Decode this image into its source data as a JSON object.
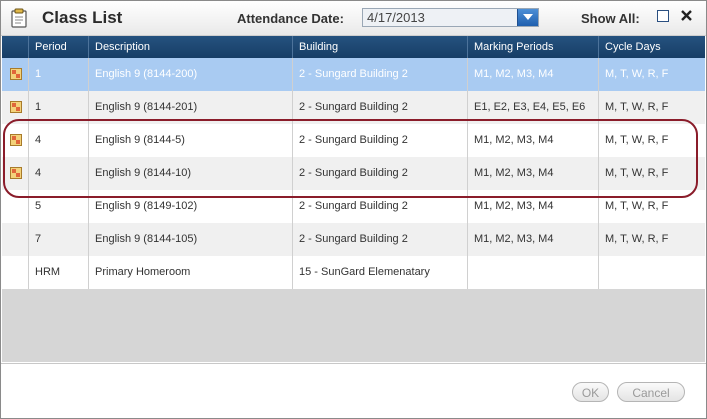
{
  "dialog": {
    "title": "Class List",
    "attendance_label": "Attendance Date:",
    "attendance_date": "4/17/2013",
    "show_all_label": "Show All:"
  },
  "table": {
    "columns": [
      "Period",
      "Description",
      "Building",
      "Marking Periods",
      "Cycle Days"
    ],
    "rows": [
      {
        "period": "1",
        "description": "English 9 (8144-200)",
        "building": "2 - Sungard Building 2",
        "marking": "M1, M2, M3, M4",
        "cycle": "M, T, W, R, F"
      },
      {
        "period": "1",
        "description": "English 9 (8144-201)",
        "building": "2 - Sungard Building 2",
        "marking": "E1, E2, E3, E4, E5, E6",
        "cycle": "M, T, W, R, F"
      },
      {
        "period": "4",
        "description": "English 9 (8144-5)",
        "building": "2 - Sungard Building 2",
        "marking": "M1, M2, M3, M4",
        "cycle": "M, T, W, R, F"
      },
      {
        "period": "4",
        "description": "English 9 (8144-10)",
        "building": "2 - Sungard Building 2",
        "marking": "M1, M2, M3, M4",
        "cycle": "M, T, W, R, F"
      },
      {
        "period": "5",
        "description": "English 9 (8149-102)",
        "building": "2 - Sungard Building 2",
        "marking": "M1, M2, M3, M4",
        "cycle": "M, T, W, R, F"
      },
      {
        "period": "7",
        "description": "English 9 (8144-105)",
        "building": "2 - Sungard Building 2",
        "marking": "M1, M2, M3, M4",
        "cycle": "M, T, W, R, F"
      },
      {
        "period": "HRM",
        "description": "Primary Homeroom",
        "building": "15 - SunGard Elemenatary",
        "marking": "",
        "cycle": ""
      }
    ]
  },
  "footer": {
    "ok_label": "OK",
    "cancel_label": "Cancel"
  }
}
